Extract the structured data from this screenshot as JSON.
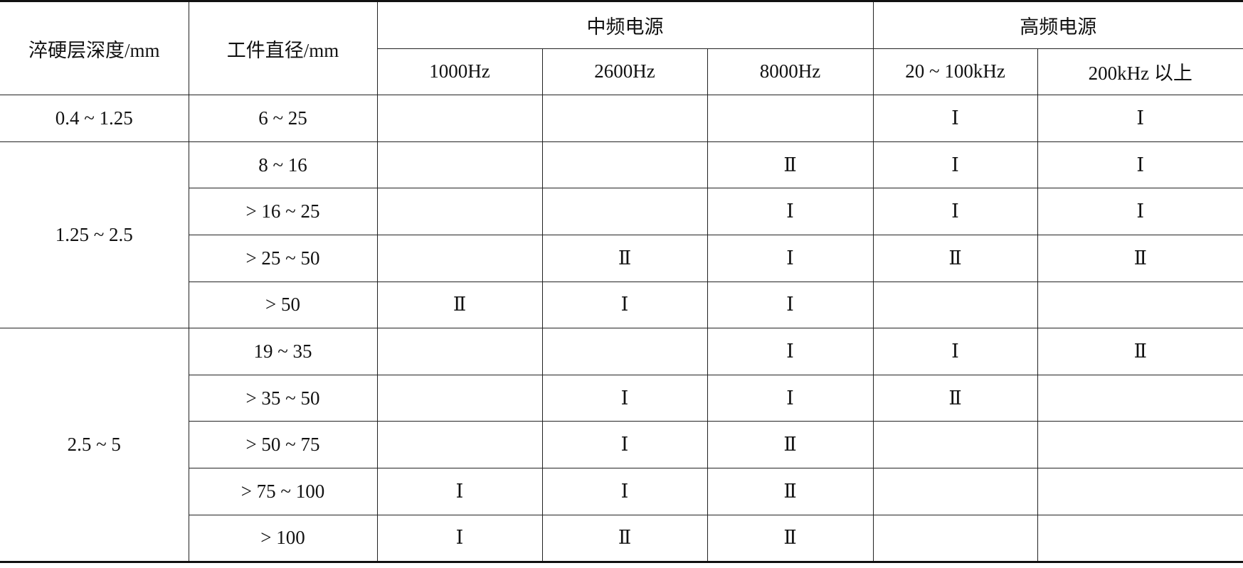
{
  "headers": {
    "depth": "淬硬层深度/mm",
    "diameter": "工件直径/mm",
    "mid_freq": "中频电源",
    "high_freq": "高频电源",
    "freqs": [
      "1000Hz",
      "2600Hz",
      "8000Hz",
      "20 ~ 100kHz",
      "200kHz 以上"
    ]
  },
  "groups": [
    {
      "depth": "0.4 ~ 1.25",
      "rows": [
        {
          "diameter": "6 ~ 25",
          "cells": [
            "",
            "",
            "",
            "Ⅰ",
            "Ⅰ"
          ]
        }
      ]
    },
    {
      "depth": "1.25 ~ 2.5",
      "rows": [
        {
          "diameter": "8 ~ 16",
          "cells": [
            "",
            "",
            "Ⅱ",
            "Ⅰ",
            "Ⅰ"
          ]
        },
        {
          "diameter": "> 16 ~ 25",
          "cells": [
            "",
            "",
            "Ⅰ",
            "Ⅰ",
            "Ⅰ"
          ]
        },
        {
          "diameter": "> 25 ~ 50",
          "cells": [
            "",
            "Ⅱ",
            "Ⅰ",
            "Ⅱ",
            "Ⅱ"
          ]
        },
        {
          "diameter": "> 50",
          "cells": [
            "Ⅱ",
            "Ⅰ",
            "Ⅰ",
            "",
            ""
          ]
        }
      ]
    },
    {
      "depth": "2.5 ~ 5",
      "rows": [
        {
          "diameter": "19 ~ 35",
          "cells": [
            "",
            "",
            "Ⅰ",
            "Ⅰ",
            "Ⅱ"
          ]
        },
        {
          "diameter": "> 35 ~ 50",
          "cells": [
            "",
            "Ⅰ",
            "Ⅰ",
            "Ⅱ",
            ""
          ]
        },
        {
          "diameter": "> 50 ~ 75",
          "cells": [
            "",
            "Ⅰ",
            "Ⅱ",
            "",
            ""
          ]
        },
        {
          "diameter": "> 75 ~ 100",
          "cells": [
            "Ⅰ",
            "Ⅰ",
            "Ⅱ",
            "",
            ""
          ]
        },
        {
          "diameter": "> 100",
          "cells": [
            "Ⅰ",
            "Ⅱ",
            "Ⅱ",
            "",
            ""
          ]
        }
      ]
    }
  ]
}
